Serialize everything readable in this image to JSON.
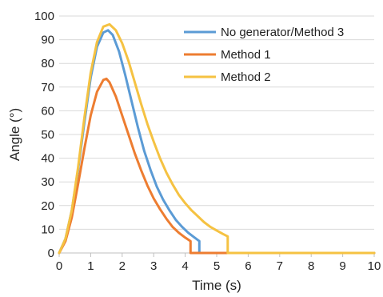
{
  "chart_data": {
    "type": "line",
    "title": "",
    "xlabel": "Time (s)",
    "ylabel": "Angle (°)",
    "xlim": [
      0,
      10
    ],
    "ylim": [
      0,
      100
    ],
    "xticks": [
      0,
      1,
      2,
      3,
      4,
      5,
      6,
      7,
      8,
      9,
      10
    ],
    "yticks": [
      0,
      10,
      20,
      30,
      40,
      50,
      60,
      70,
      80,
      90,
      100
    ],
    "grid": "horizontal",
    "legend_position": "top-right",
    "series": [
      {
        "name": "No generator/Method 3",
        "color": "#5b9bd5",
        "x": [
          0,
          0.2,
          0.4,
          0.6,
          0.8,
          1.0,
          1.2,
          1.4,
          1.55,
          1.7,
          1.9,
          2.1,
          2.3,
          2.5,
          2.7,
          2.9,
          3.1,
          3.3,
          3.5,
          3.7,
          3.9,
          4.1,
          4.3,
          4.45,
          4.45,
          4.5,
          10
        ],
        "y": [
          0,
          6,
          18,
          35,
          55,
          74,
          87,
          93,
          94,
          92,
          85,
          75,
          64,
          53,
          43,
          35,
          28,
          22.5,
          18,
          14,
          11,
          8.5,
          6.5,
          5,
          0,
          0,
          0
        ]
      },
      {
        "name": "Method 1",
        "color": "#ed7d31",
        "x": [
          0,
          0.2,
          0.4,
          0.6,
          0.8,
          1.0,
          1.2,
          1.4,
          1.5,
          1.6,
          1.8,
          2.0,
          2.2,
          2.4,
          2.6,
          2.8,
          3.0,
          3.2,
          3.4,
          3.6,
          3.8,
          4.0,
          4.17,
          4.17,
          4.3,
          10
        ],
        "y": [
          0,
          5,
          15,
          29,
          44,
          58,
          68,
          73,
          73.5,
          72,
          66,
          58,
          50,
          42,
          35,
          28.5,
          23,
          18.5,
          14.5,
          11,
          8.5,
          6.5,
          5,
          0,
          0,
          0
        ]
      },
      {
        "name": "Method 2",
        "color": "#f5c242",
        "x": [
          0,
          0.2,
          0.4,
          0.6,
          0.8,
          1.0,
          1.2,
          1.4,
          1.6,
          1.8,
          2.0,
          2.2,
          2.4,
          2.6,
          2.8,
          3.0,
          3.2,
          3.4,
          3.6,
          3.8,
          4.0,
          4.2,
          4.4,
          4.6,
          4.8,
          5.0,
          5.2,
          5.35,
          5.35,
          5.5,
          10
        ],
        "y": [
          0,
          6,
          18,
          36,
          57,
          76,
          89,
          95.5,
          96.5,
          94,
          88.5,
          81,
          72,
          63,
          54.5,
          47,
          40,
          34,
          29,
          24.5,
          21,
          18,
          15.5,
          13,
          11,
          9.5,
          8,
          7,
          0,
          0,
          0
        ]
      }
    ]
  }
}
